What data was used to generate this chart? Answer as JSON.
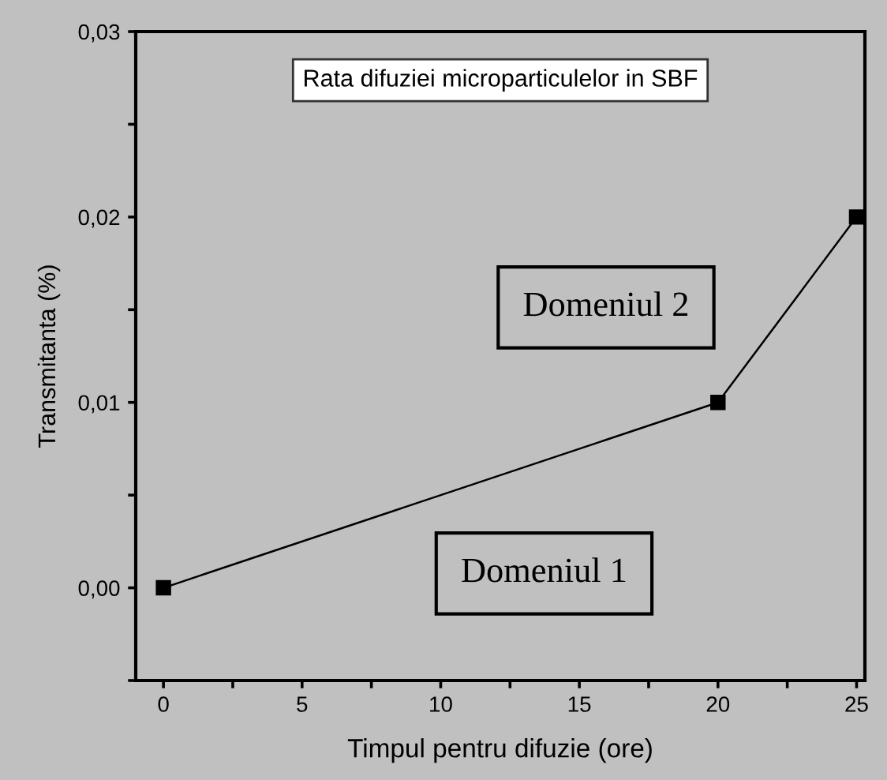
{
  "chart_data": {
    "type": "line",
    "title": "Rata difuziei microparticulelor in SBF",
    "xlabel": "Timpul pentru difuzie (ore)",
    "ylabel": "Transmitanta (%)",
    "x": [
      0,
      20,
      25
    ],
    "series": [
      {
        "color": "#000000",
        "values": [
          0.0,
          0.01,
          0.02
        ]
      }
    ],
    "marker": "square",
    "line_style": "solid",
    "grid": false,
    "legend": false,
    "xlim": [
      -1,
      25.3
    ],
    "xticks": [
      0,
      {
        "value": 2.5,
        "label": null
      },
      5,
      {
        "value": 7.5,
        "label": null
      },
      10,
      {
        "value": 12.5,
        "label": null
      },
      15,
      {
        "value": 17.5,
        "label": null
      },
      20,
      {
        "value": 22.5,
        "label": null
      },
      25
    ],
    "ylim": [
      -0.005,
      0.03
    ],
    "yticks": [
      {
        "value": -0.005,
        "label": null
      },
      {
        "value": 0,
        "label": "0,00"
      },
      {
        "value": 0.005,
        "label": null
      },
      {
        "value": 0.01,
        "label": "0,01"
      },
      {
        "value": 0.015,
        "label": null
      },
      {
        "value": 0.02,
        "label": "0,02"
      },
      {
        "value": 0.025,
        "label": null
      },
      {
        "value": 0.03,
        "label": "0,03"
      }
    ],
    "annotations": [
      "Domeniul 2",
      "Domeniul 1"
    ]
  }
}
